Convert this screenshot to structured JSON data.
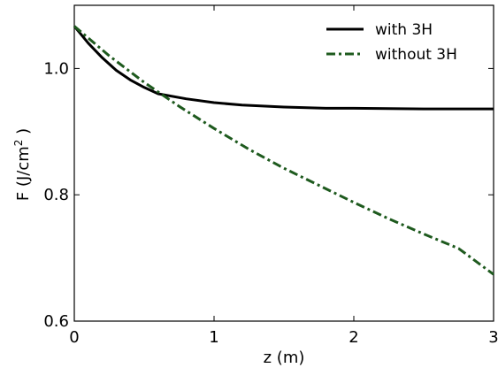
{
  "chart_data": {
    "type": "line",
    "xlabel": "z (m)",
    "ylabel_prefix": "F (J/cm",
    "ylabel_sup": "2",
    "ylabel_suffix": " )",
    "xlim": [
      0,
      3
    ],
    "ylim": [
      0.6,
      1.1
    ],
    "xticks": [
      0,
      1,
      2,
      3
    ],
    "xtick_labels": [
      "0",
      "1",
      "2",
      "3"
    ],
    "yticks": [
      0.6,
      0.8,
      1.0
    ],
    "ytick_labels": [
      "0.6",
      "0.8",
      "1.0"
    ],
    "grid": false,
    "legend_position": "top-right",
    "series": [
      {
        "name": "with 3H",
        "color": "#000000",
        "style": "solid",
        "x": [
          0,
          0.1,
          0.2,
          0.3,
          0.4,
          0.5,
          0.6,
          0.8,
          1.0,
          1.2,
          1.5,
          1.8,
          2.0,
          2.5,
          3.0
        ],
        "y": [
          1.067,
          1.04,
          1.017,
          0.997,
          0.982,
          0.97,
          0.96,
          0.952,
          0.946,
          0.942,
          0.939,
          0.937,
          0.937,
          0.936,
          0.936
        ]
      },
      {
        "name": "without 3H",
        "color": "#1e5a1e",
        "style": "dashdot",
        "x": [
          0,
          0.25,
          0.5,
          0.75,
          1.0,
          1.25,
          1.5,
          1.75,
          2.0,
          2.25,
          2.5,
          2.75,
          3.0
        ],
        "y": [
          1.067,
          1.02,
          0.978,
          0.94,
          0.905,
          0.872,
          0.842,
          0.815,
          0.788,
          0.762,
          0.738,
          0.715,
          0.674
        ]
      }
    ]
  }
}
